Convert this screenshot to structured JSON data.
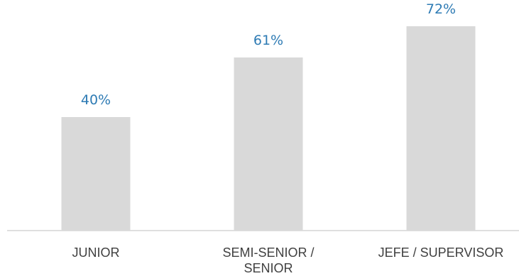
{
  "chart_data": {
    "type": "bar",
    "categories": [
      [
        "JUNIOR"
      ],
      [
        "SEMI-SENIOR /",
        "SENIOR"
      ],
      [
        "JEFE / SUPERVISOR"
      ]
    ],
    "values": [
      40,
      61,
      72
    ],
    "value_labels": [
      "40%",
      "61%",
      "72%"
    ],
    "unit": "%",
    "ylim": [
      0,
      100
    ],
    "grid": false,
    "legend": "none",
    "colors": {
      "bar": "#d9d9d9",
      "value_label": "#2e7bb4",
      "category_label": "#404040",
      "axis": "#bfbfbf"
    }
  }
}
